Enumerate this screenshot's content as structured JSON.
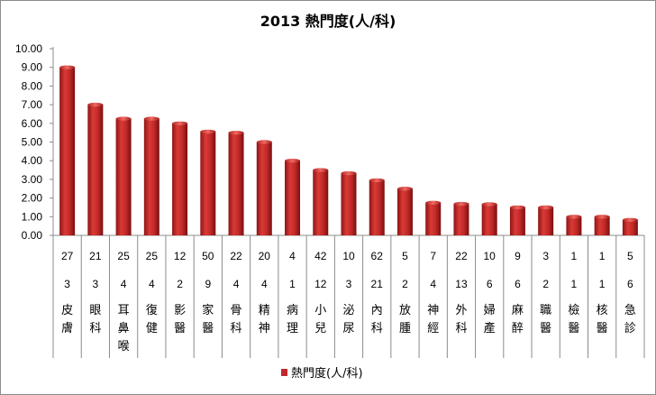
{
  "chart_data": {
    "type": "bar",
    "title": "2013 熱門度(人/科)",
    "ylim": [
      0,
      10
    ],
    "ytick_step": 1,
    "ytick_format": "0.00",
    "grid": false,
    "legend": {
      "position": "bottom",
      "entries": [
        "熱門度(人/科)"
      ]
    },
    "series": [
      {
        "name": "熱門度(人/科)",
        "color": "#c0282b",
        "values": [
          9.0,
          7.0,
          6.25,
          6.25,
          6.0,
          5.56,
          5.5,
          5.0,
          4.0,
          3.5,
          3.33,
          2.95,
          2.5,
          1.75,
          1.69,
          1.67,
          1.5,
          1.5,
          1.0,
          1.0,
          0.83
        ]
      }
    ],
    "categories": [
      {
        "applicants": "27",
        "positions": "3",
        "dept": [
          "皮",
          "膚"
        ]
      },
      {
        "applicants": "21",
        "positions": "3",
        "dept": [
          "眼",
          "科"
        ]
      },
      {
        "applicants": "25",
        "positions": "4",
        "dept": [
          "耳",
          "鼻",
          "喉"
        ]
      },
      {
        "applicants": "25",
        "positions": "4",
        "dept": [
          "復",
          "健"
        ]
      },
      {
        "applicants": "12",
        "positions": "2",
        "dept": [
          "影",
          "醫"
        ]
      },
      {
        "applicants": "50",
        "positions": "9",
        "dept": [
          "家",
          "醫"
        ]
      },
      {
        "applicants": "22",
        "positions": "4",
        "dept": [
          "骨",
          "科"
        ]
      },
      {
        "applicants": "20",
        "positions": "4",
        "dept": [
          "精",
          "神"
        ]
      },
      {
        "applicants": "4",
        "positions": "1",
        "dept": [
          "病",
          "理"
        ]
      },
      {
        "applicants": "42",
        "positions": "12",
        "dept": [
          "小",
          "兒"
        ]
      },
      {
        "applicants": "10",
        "positions": "3",
        "dept": [
          "泌",
          "尿"
        ]
      },
      {
        "applicants": "62",
        "positions": "21",
        "dept": [
          "內",
          "科"
        ]
      },
      {
        "applicants": "5",
        "positions": "2",
        "dept": [
          "放",
          "腫"
        ]
      },
      {
        "applicants": "7",
        "positions": "4",
        "dept": [
          "神",
          "經"
        ]
      },
      {
        "applicants": "22",
        "positions": "13",
        "dept": [
          "外",
          "科"
        ]
      },
      {
        "applicants": "10",
        "positions": "6",
        "dept": [
          "婦",
          "產"
        ]
      },
      {
        "applicants": "9",
        "positions": "6",
        "dept": [
          "麻",
          "醉"
        ]
      },
      {
        "applicants": "3",
        "positions": "2",
        "dept": [
          "職",
          "醫"
        ]
      },
      {
        "applicants": "1",
        "positions": "1",
        "dept": [
          "檢",
          "醫"
        ]
      },
      {
        "applicants": "1",
        "positions": "1",
        "dept": [
          "核",
          "醫"
        ]
      },
      {
        "applicants": "5",
        "positions": "6",
        "dept": [
          "急",
          "診"
        ]
      }
    ]
  }
}
